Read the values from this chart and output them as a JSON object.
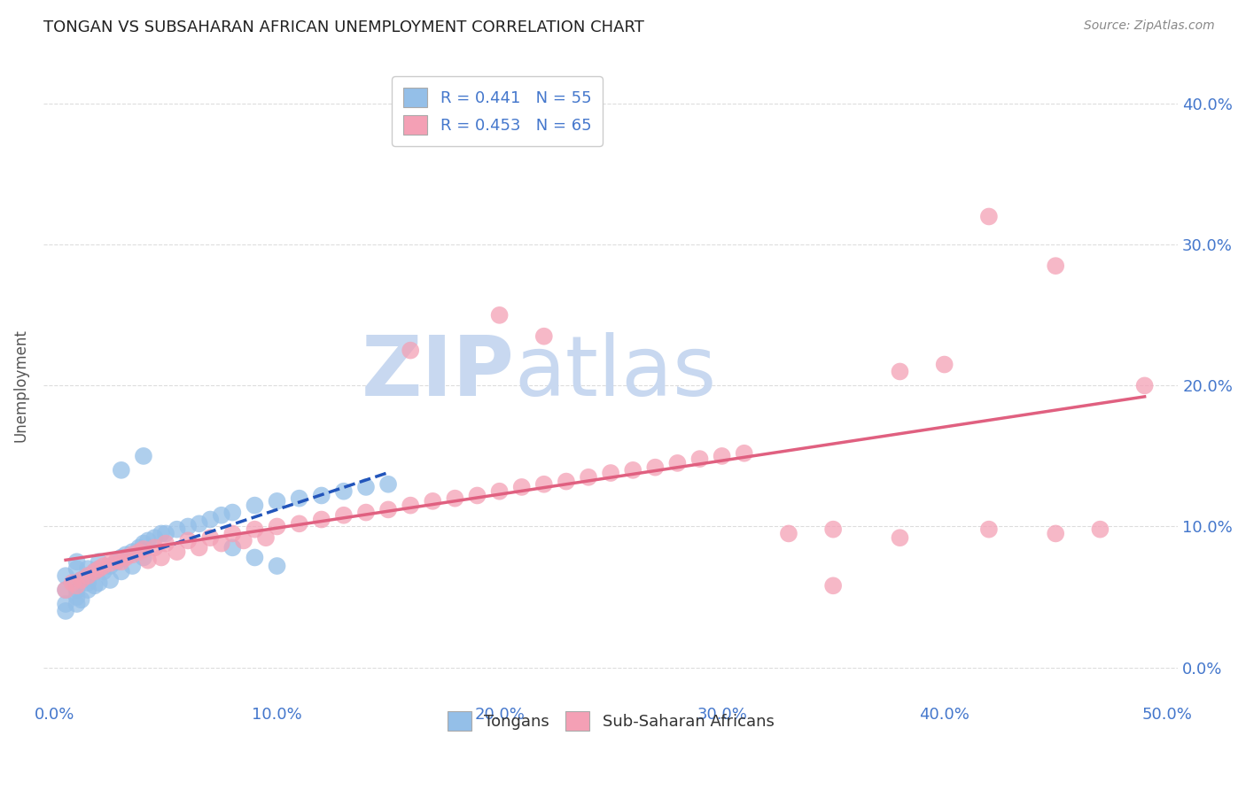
{
  "title": "TONGAN VS SUBSAHARAN AFRICAN UNEMPLOYMENT CORRELATION CHART",
  "source": "Source: ZipAtlas.com",
  "xlabel_ticks": [
    "0.0%",
    "10.0%",
    "20.0%",
    "30.0%",
    "40.0%",
    "50.0%"
  ],
  "xlabel_tick_vals": [
    0.0,
    0.1,
    0.2,
    0.3,
    0.4,
    0.5
  ],
  "ylabel": "Unemployment",
  "ytick_vals": [
    0.0,
    0.1,
    0.2,
    0.3,
    0.4
  ],
  "ytick_labels": [
    "0.0%",
    "10.0%",
    "20.0%",
    "30.0%",
    "40.0%"
  ],
  "xlim": [
    -0.005,
    0.505
  ],
  "ylim": [
    -0.025,
    0.425
  ],
  "legend_label_1": "R = 0.441   N = 55",
  "legend_label_2": "R = 0.453   N = 65",
  "tongan_color": "#94bfe8",
  "subsaharan_color": "#f4a0b5",
  "tongan_line_color": "#2255bb",
  "subsaharan_line_color": "#e06080",
  "background_color": "#ffffff",
  "grid_color": "#dddddd",
  "title_fontsize": 13,
  "source_fontsize": 10,
  "tick_label_color": "#4477cc",
  "watermark_zip": "ZIP",
  "watermark_atlas": "atlas",
  "watermark_color": "#c8d8f0",
  "legend_fontsize": 13,
  "bottom_legend_labels": [
    "Tongans",
    "Sub-Saharan Africans"
  ],
  "tongan_scatter": [
    [
      0.005,
      0.055
    ],
    [
      0.005,
      0.045
    ],
    [
      0.005,
      0.065
    ],
    [
      0.005,
      0.04
    ],
    [
      0.01,
      0.06
    ],
    [
      0.01,
      0.05
    ],
    [
      0.01,
      0.07
    ],
    [
      0.01,
      0.055
    ],
    [
      0.01,
      0.045
    ],
    [
      0.01,
      0.075
    ],
    [
      0.012,
      0.062
    ],
    [
      0.012,
      0.048
    ],
    [
      0.015,
      0.065
    ],
    [
      0.015,
      0.055
    ],
    [
      0.015,
      0.07
    ],
    [
      0.015,
      0.06
    ],
    [
      0.018,
      0.068
    ],
    [
      0.018,
      0.058
    ],
    [
      0.02,
      0.07
    ],
    [
      0.02,
      0.06
    ],
    [
      0.02,
      0.075
    ],
    [
      0.022,
      0.068
    ],
    [
      0.025,
      0.072
    ],
    [
      0.025,
      0.062
    ],
    [
      0.028,
      0.075
    ],
    [
      0.03,
      0.078
    ],
    [
      0.03,
      0.068
    ],
    [
      0.032,
      0.08
    ],
    [
      0.035,
      0.082
    ],
    [
      0.035,
      0.072
    ],
    [
      0.038,
      0.085
    ],
    [
      0.04,
      0.088
    ],
    [
      0.04,
      0.078
    ],
    [
      0.042,
      0.09
    ],
    [
      0.045,
      0.092
    ],
    [
      0.048,
      0.095
    ],
    [
      0.05,
      0.095
    ],
    [
      0.055,
      0.098
    ],
    [
      0.06,
      0.1
    ],
    [
      0.065,
      0.102
    ],
    [
      0.07,
      0.105
    ],
    [
      0.075,
      0.108
    ],
    [
      0.08,
      0.11
    ],
    [
      0.09,
      0.115
    ],
    [
      0.1,
      0.118
    ],
    [
      0.11,
      0.12
    ],
    [
      0.12,
      0.122
    ],
    [
      0.13,
      0.125
    ],
    [
      0.14,
      0.128
    ],
    [
      0.15,
      0.13
    ],
    [
      0.03,
      0.14
    ],
    [
      0.04,
      0.15
    ],
    [
      0.08,
      0.085
    ],
    [
      0.09,
      0.078
    ],
    [
      0.1,
      0.072
    ]
  ],
  "subsaharan_scatter": [
    [
      0.005,
      0.055
    ],
    [
      0.008,
      0.06
    ],
    [
      0.01,
      0.058
    ],
    [
      0.012,
      0.062
    ],
    [
      0.015,
      0.065
    ],
    [
      0.018,
      0.068
    ],
    [
      0.02,
      0.07
    ],
    [
      0.022,
      0.072
    ],
    [
      0.025,
      0.074
    ],
    [
      0.028,
      0.076
    ],
    [
      0.03,
      0.075
    ],
    [
      0.032,
      0.078
    ],
    [
      0.035,
      0.08
    ],
    [
      0.038,
      0.082
    ],
    [
      0.04,
      0.084
    ],
    [
      0.042,
      0.076
    ],
    [
      0.045,
      0.085
    ],
    [
      0.048,
      0.078
    ],
    [
      0.05,
      0.088
    ],
    [
      0.055,
      0.082
    ],
    [
      0.06,
      0.09
    ],
    [
      0.065,
      0.085
    ],
    [
      0.07,
      0.092
    ],
    [
      0.075,
      0.088
    ],
    [
      0.08,
      0.095
    ],
    [
      0.085,
      0.09
    ],
    [
      0.09,
      0.098
    ],
    [
      0.095,
      0.092
    ],
    [
      0.1,
      0.1
    ],
    [
      0.11,
      0.102
    ],
    [
      0.12,
      0.105
    ],
    [
      0.13,
      0.108
    ],
    [
      0.14,
      0.11
    ],
    [
      0.15,
      0.112
    ],
    [
      0.16,
      0.115
    ],
    [
      0.17,
      0.118
    ],
    [
      0.18,
      0.12
    ],
    [
      0.19,
      0.122
    ],
    [
      0.2,
      0.125
    ],
    [
      0.21,
      0.128
    ],
    [
      0.22,
      0.13
    ],
    [
      0.23,
      0.132
    ],
    [
      0.24,
      0.135
    ],
    [
      0.25,
      0.138
    ],
    [
      0.26,
      0.14
    ],
    [
      0.27,
      0.142
    ],
    [
      0.28,
      0.145
    ],
    [
      0.29,
      0.148
    ],
    [
      0.3,
      0.15
    ],
    [
      0.31,
      0.152
    ],
    [
      0.2,
      0.25
    ],
    [
      0.22,
      0.235
    ],
    [
      0.16,
      0.225
    ],
    [
      0.42,
      0.32
    ],
    [
      0.45,
      0.285
    ],
    [
      0.38,
      0.21
    ],
    [
      0.4,
      0.215
    ],
    [
      0.33,
      0.095
    ],
    [
      0.35,
      0.098
    ],
    [
      0.38,
      0.092
    ],
    [
      0.42,
      0.098
    ],
    [
      0.45,
      0.095
    ],
    [
      0.47,
      0.098
    ],
    [
      0.49,
      0.2
    ],
    [
      0.35,
      0.058
    ]
  ]
}
